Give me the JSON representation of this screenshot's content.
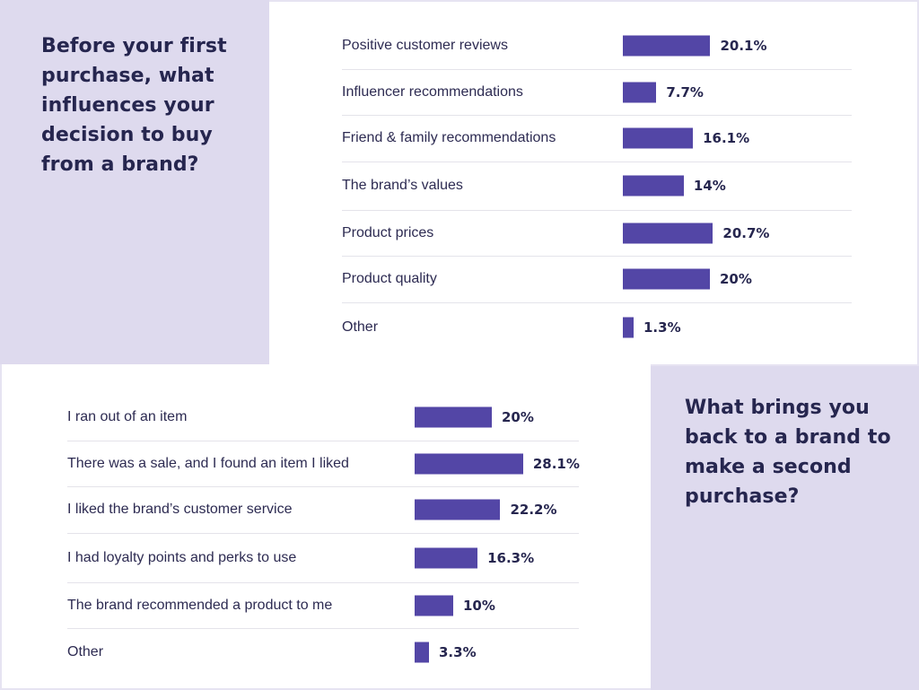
{
  "colors": {
    "panel_lilac": "#dedaee",
    "bar": "#5346a6",
    "text": "#26264f"
  },
  "chart_data": [
    {
      "type": "bar",
      "orientation": "horizontal",
      "title": "Before your first purchase, what influences your decision to buy from a brand?",
      "categories": [
        "Positive customer reviews",
        "Influencer recommendations",
        "Friend & family recommendations",
        "The brand’s values",
        "Product prices",
        "Product quality",
        "Other"
      ],
      "values": [
        20.1,
        7.7,
        16.1,
        14,
        20.7,
        20,
        1.3
      ],
      "value_labels": [
        "20.1%",
        "7.7%",
        "16.1%",
        "14%",
        "20.7%",
        "20%",
        "1.3%"
      ],
      "unit": "%",
      "grid": false
    },
    {
      "type": "bar",
      "orientation": "horizontal",
      "title": "What brings you back to a brand to make a second purchase?",
      "categories": [
        "I ran out of an item",
        "There was a sale, and I found an item I liked",
        "I liked the brand’s customer service",
        "I had loyalty points and perks to use",
        "The brand recommended a product to me",
        "Other"
      ],
      "values": [
        20,
        28.1,
        22.2,
        16.3,
        10,
        3.3
      ],
      "value_labels": [
        "20%",
        "28.1%",
        "22.2%",
        "16.3%",
        "10%",
        "3.3%"
      ],
      "unit": "%",
      "grid": false
    }
  ]
}
